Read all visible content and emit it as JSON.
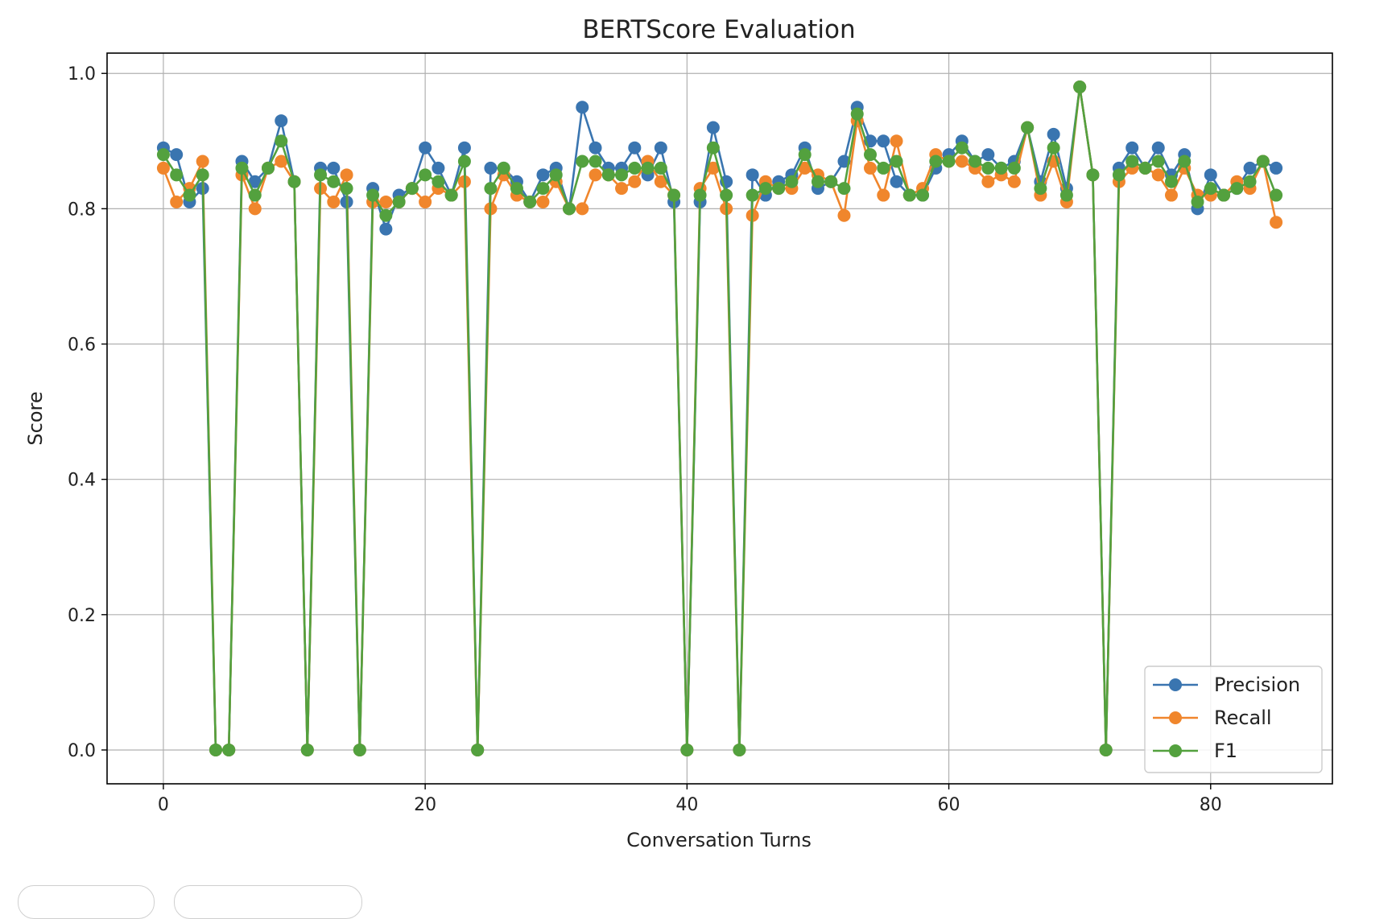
{
  "chart_data": {
    "type": "line",
    "title": "BERTScore Evaluation",
    "xlabel": "Conversation Turns",
    "ylabel": "Score",
    "xlim": [
      -4.3,
      89.3
    ],
    "ylim": [
      -0.05,
      1.03
    ],
    "xticks": [
      0,
      20,
      40,
      60,
      80
    ],
    "yticks": [
      0.0,
      0.2,
      0.4,
      0.6,
      0.8,
      1.0
    ],
    "xtick_labels": [
      "0",
      "20",
      "40",
      "60",
      "80"
    ],
    "ytick_labels": [
      "0.0",
      "0.2",
      "0.4",
      "0.6",
      "0.8",
      "1.0"
    ],
    "grid": true,
    "legend_position": "lower-right",
    "x": [
      0,
      1,
      2,
      3,
      4,
      5,
      6,
      7,
      8,
      9,
      10,
      11,
      12,
      13,
      14,
      15,
      16,
      17,
      18,
      19,
      20,
      21,
      22,
      23,
      24,
      25,
      26,
      27,
      28,
      29,
      30,
      31,
      32,
      33,
      34,
      35,
      36,
      37,
      38,
      39,
      40,
      41,
      42,
      43,
      44,
      45,
      46,
      47,
      48,
      49,
      50,
      51,
      52,
      53,
      54,
      55,
      56,
      57,
      58,
      59,
      60,
      61,
      62,
      63,
      64,
      65,
      66,
      67,
      68,
      69,
      70,
      71,
      72,
      73,
      74,
      75,
      76,
      77,
      78,
      79,
      80,
      81,
      82,
      83,
      84,
      85
    ],
    "series": [
      {
        "name": "Precision",
        "color": "#3a75b0",
        "values": [
          0.89,
          0.88,
          0.81,
          0.83,
          0,
          0,
          0.87,
          0.84,
          0.86,
          0.93,
          0.84,
          0,
          0.86,
          0.86,
          0.81,
          0,
          0.83,
          0.77,
          0.82,
          0.83,
          0.89,
          0.86,
          0.82,
          0.89,
          0,
          0.86,
          0.86,
          0.84,
          0.81,
          0.85,
          0.86,
          0.8,
          0.95,
          0.89,
          0.86,
          0.86,
          0.89,
          0.85,
          0.89,
          0.81,
          0,
          0.81,
          0.92,
          0.84,
          0,
          0.85,
          0.82,
          0.84,
          0.85,
          0.89,
          0.83,
          0.84,
          0.87,
          0.95,
          0.9,
          0.9,
          0.84,
          0.82,
          0.82,
          0.86,
          0.88,
          0.9,
          0.87,
          0.88,
          0.86,
          0.87,
          0.92,
          0.84,
          0.91,
          0.83,
          0.98,
          0.85,
          0,
          0.86,
          0.89,
          0.86,
          0.89,
          0.85,
          0.88,
          0.8,
          0.85,
          0.82,
          0.83,
          0.86,
          0.87,
          0.86
        ]
      },
      {
        "name": "Recall",
        "color": "#f0862c",
        "values": [
          0.86,
          0.81,
          0.83,
          0.87,
          0,
          0,
          0.85,
          0.8,
          0.86,
          0.87,
          0.84,
          0,
          0.83,
          0.81,
          0.85,
          0,
          0.81,
          0.81,
          0.81,
          0.83,
          0.81,
          0.83,
          0.82,
          0.84,
          0,
          0.8,
          0.85,
          0.82,
          0.81,
          0.81,
          0.84,
          0.8,
          0.8,
          0.85,
          0.85,
          0.83,
          0.84,
          0.87,
          0.84,
          0.82,
          0,
          0.83,
          0.86,
          0.8,
          0,
          0.79,
          0.84,
          0.83,
          0.83,
          0.86,
          0.85,
          0.84,
          0.79,
          0.93,
          0.86,
          0.82,
          0.9,
          0.82,
          0.83,
          0.88,
          0.87,
          0.87,
          0.86,
          0.84,
          0.85,
          0.84,
          0.92,
          0.82,
          0.87,
          0.81,
          0.98,
          0.85,
          0,
          0.84,
          0.86,
          0.86,
          0.85,
          0.82,
          0.86,
          0.82,
          0.82,
          0.82,
          0.84,
          0.83,
          0.87,
          0.78
        ]
      },
      {
        "name": "F1",
        "color": "#53a13e",
        "values": [
          0.88,
          0.85,
          0.82,
          0.85,
          0,
          0,
          0.86,
          0.82,
          0.86,
          0.9,
          0.84,
          0,
          0.85,
          0.84,
          0.83,
          0,
          0.82,
          0.79,
          0.81,
          0.83,
          0.85,
          0.84,
          0.82,
          0.87,
          0,
          0.83,
          0.86,
          0.83,
          0.81,
          0.83,
          0.85,
          0.8,
          0.87,
          0.87,
          0.85,
          0.85,
          0.86,
          0.86,
          0.86,
          0.82,
          0,
          0.82,
          0.89,
          0.82,
          0,
          0.82,
          0.83,
          0.83,
          0.84,
          0.88,
          0.84,
          0.84,
          0.83,
          0.94,
          0.88,
          0.86,
          0.87,
          0.82,
          0.82,
          0.87,
          0.87,
          0.89,
          0.87,
          0.86,
          0.86,
          0.86,
          0.92,
          0.83,
          0.89,
          0.82,
          0.98,
          0.85,
          0,
          0.85,
          0.87,
          0.86,
          0.87,
          0.84,
          0.87,
          0.81,
          0.83,
          0.82,
          0.83,
          0.84,
          0.87,
          0.82
        ]
      }
    ]
  }
}
